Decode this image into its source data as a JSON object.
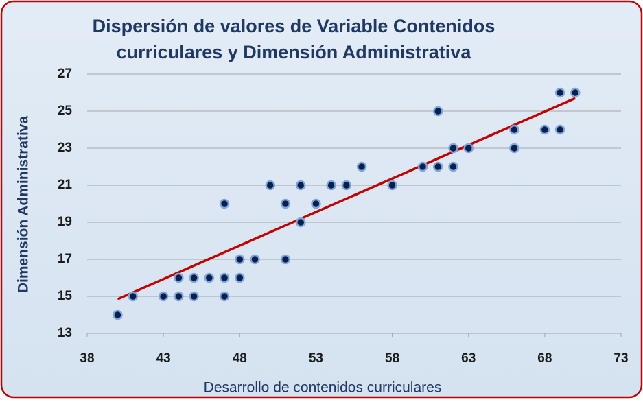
{
  "chart_data": {
    "type": "scatter",
    "title": [
      "Dispersión de valores de Variable Contenidos",
      "curriculares y Dimensión Administrativa"
    ],
    "x_label": "Desarrollo de contenidos curriculares",
    "y_label": "Dimensión Administrativa",
    "series": [
      {
        "color": "#0b1f4d",
        "x": [
          40,
          41,
          43,
          44,
          44,
          45,
          45,
          46,
          47,
          47,
          47,
          48,
          48,
          49,
          50,
          51,
          51,
          52,
          52,
          53,
          54,
          55,
          56,
          58,
          60,
          61,
          61,
          62,
          62,
          63,
          66,
          66,
          68,
          69,
          69,
          70
        ],
        "values": [
          14,
          15,
          15,
          16,
          15,
          16,
          15,
          16,
          20,
          16,
          15,
          17,
          16,
          17,
          21,
          20,
          17,
          21,
          19,
          20,
          21,
          21,
          22,
          21,
          22,
          25,
          22,
          23,
          22,
          23,
          24,
          23,
          24,
          26,
          24,
          26
        ]
      }
    ],
    "trendline": {
      "color": "#c00000",
      "x": [
        40,
        70
      ],
      "values": [
        14.85,
        25.7
      ]
    },
    "xlim": [
      38,
      73
    ],
    "xticks": [
      38,
      43,
      48,
      53,
      58,
      63,
      68,
      73
    ],
    "ylim": [
      13,
      27
    ],
    "yticks": [
      13,
      15,
      17,
      19,
      21,
      23,
      25,
      27
    ],
    "grid": true
  }
}
